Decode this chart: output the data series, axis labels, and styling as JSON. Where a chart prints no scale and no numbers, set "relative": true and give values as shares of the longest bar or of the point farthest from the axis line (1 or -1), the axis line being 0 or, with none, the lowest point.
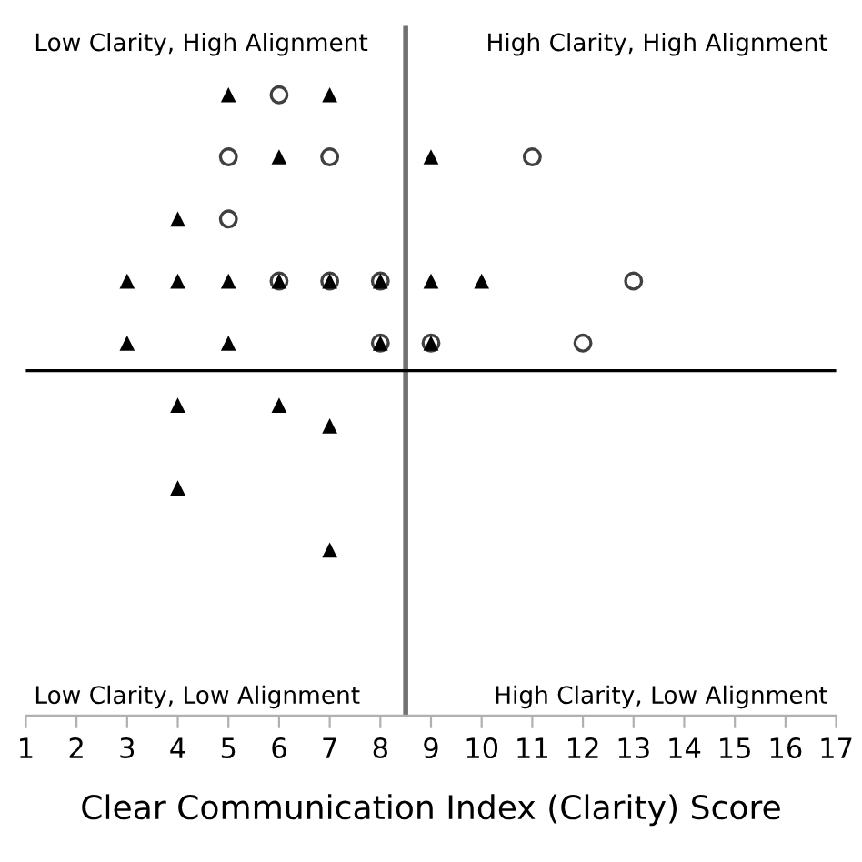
{
  "chart_data": {
    "type": "scatter",
    "relative": true,
    "xlabel": "Clear Communication Index (Clarity) Score",
    "xlim": [
      1,
      17
    ],
    "xticks": [
      1,
      2,
      3,
      4,
      5,
      6,
      7,
      8,
      9,
      10,
      11,
      12,
      13,
      14,
      15,
      16,
      17
    ],
    "grid": false,
    "annotations": [
      "Low Clarity, High Alignment",
      "High Clarity, High Alignment",
      "Low Clarity, Low Alignment",
      "High Clarity, Low Alignment"
    ],
    "ref_lines": [
      {
        "axis": "x",
        "value": 8.5,
        "color": "#707070"
      },
      {
        "axis": "y",
        "value": 0,
        "color": "#000000"
      }
    ],
    "series": [
      {
        "color": "#000000",
        "marker": "triangle",
        "x": [
          5,
          7,
          6,
          9,
          4,
          3,
          4,
          5,
          6,
          7,
          8,
          9,
          10,
          3,
          5,
          8,
          9,
          4,
          6,
          7,
          4,
          7
        ],
        "values": [
          1,
          1,
          0.775,
          0.775,
          0.55,
          0.325,
          0.325,
          0.325,
          0.325,
          0.325,
          0.325,
          0.325,
          0.325,
          0.1,
          0.1,
          0.1,
          0.1,
          -0.125,
          -0.125,
          -0.2,
          -0.425,
          -0.65
        ]
      },
      {
        "color": "#404040",
        "marker": "circle",
        "x": [
          6,
          5,
          7,
          11,
          5,
          6,
          7,
          8,
          13,
          8,
          9,
          12
        ],
        "values": [
          1,
          0.775,
          0.775,
          0.775,
          0.55,
          0.325,
          0.325,
          0.325,
          0.325,
          0.1,
          0.1,
          0.1
        ]
      }
    ]
  }
}
